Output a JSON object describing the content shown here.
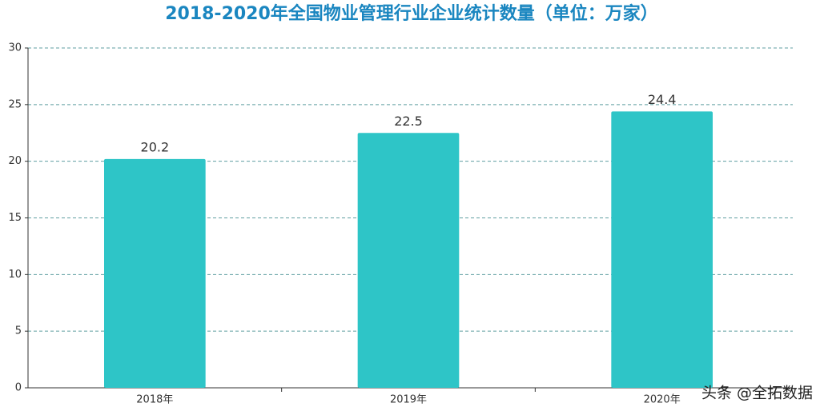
{
  "chart_data": {
    "type": "bar",
    "title": "2018-2020年全国物业管理行业企业统计数量（单位：万家）",
    "categories": [
      "2018年",
      "2019年",
      "2020年"
    ],
    "values": [
      20.2,
      22.5,
      24.4
    ],
    "color": "#2ec5c7",
    "ylim": [
      0,
      30
    ],
    "yticks": [
      0,
      5,
      10,
      15,
      20,
      25,
      30
    ],
    "grid": true,
    "watermark": "头条 @全拓数据"
  }
}
